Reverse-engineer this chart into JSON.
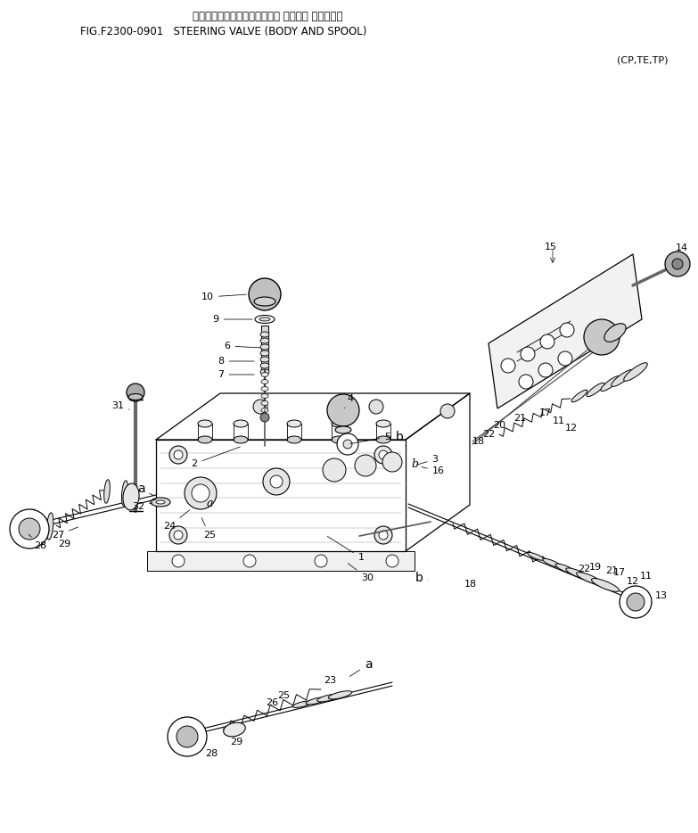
{
  "bg_color": "#ffffff",
  "fig_width": 7.83,
  "fig_height": 9.34,
  "dpi": 100,
  "title_jp": "ステアリングバルブ（ボディー オヨビー スプール）",
  "title_fig": "FIG.F2300-0901   STEERING VALVE (BODY AND SPOOL)",
  "subtitle": "(CP,TE,TP)"
}
